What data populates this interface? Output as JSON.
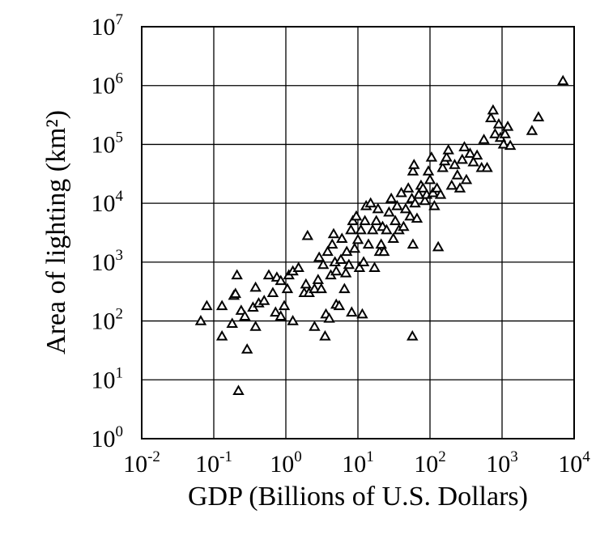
{
  "chart_data": {
    "type": "scatter",
    "title": "",
    "xlabel": "GDP (Billions of U.S. Dollars)",
    "ylabel": "Area of lighting (km²)",
    "xscale": "log",
    "yscale": "log",
    "xlim": [
      0.01,
      10000
    ],
    "ylim": [
      1,
      10000000
    ],
    "grid": true,
    "legend": "none",
    "marker": "open-triangle",
    "marker_color": "#000000",
    "x_ticks": [
      {
        "base": "10",
        "exp": "-2"
      },
      {
        "base": "10",
        "exp": "-1"
      },
      {
        "base": "10",
        "exp": "0"
      },
      {
        "base": "10",
        "exp": "1"
      },
      {
        "base": "10",
        "exp": "2"
      },
      {
        "base": "10",
        "exp": "3"
      },
      {
        "base": "10",
        "exp": "4"
      }
    ],
    "y_ticks": [
      {
        "base": "10",
        "exp": "0"
      },
      {
        "base": "10",
        "exp": "1"
      },
      {
        "base": "10",
        "exp": "2"
      },
      {
        "base": "10",
        "exp": "3"
      },
      {
        "base": "10",
        "exp": "4"
      },
      {
        "base": "10",
        "exp": "5"
      },
      {
        "base": "10",
        "exp": "6"
      },
      {
        "base": "10",
        "exp": "7"
      }
    ],
    "points": [
      [
        0.066,
        100
      ],
      [
        0.08,
        180
      ],
      [
        0.13,
        55
      ],
      [
        0.13,
        180
      ],
      [
        0.18,
        90
      ],
      [
        0.19,
        270
      ],
      [
        0.2,
        290
      ],
      [
        0.21,
        600
      ],
      [
        0.22,
        6.5
      ],
      [
        0.24,
        150
      ],
      [
        0.27,
        120
      ],
      [
        0.29,
        33
      ],
      [
        0.35,
        170
      ],
      [
        0.38,
        80
      ],
      [
        0.38,
        370
      ],
      [
        0.42,
        200
      ],
      [
        0.5,
        220
      ],
      [
        0.58,
        600
      ],
      [
        0.66,
        300
      ],
      [
        0.72,
        140
      ],
      [
        0.75,
        550
      ],
      [
        0.85,
        480
      ],
      [
        0.85,
        120
      ],
      [
        0.95,
        180
      ],
      [
        1.05,
        350
      ],
      [
        1.1,
        600
      ],
      [
        1.25,
        700
      ],
      [
        1.25,
        100
      ],
      [
        1.5,
        800
      ],
      [
        1.8,
        300
      ],
      [
        1.9,
        420
      ],
      [
        2.0,
        2800
      ],
      [
        2.1,
        300
      ],
      [
        2.5,
        80
      ],
      [
        2.5,
        350
      ],
      [
        2.8,
        500
      ],
      [
        2.9,
        1200
      ],
      [
        3.1,
        350
      ],
      [
        3.3,
        900
      ],
      [
        3.5,
        55
      ],
      [
        3.6,
        130
      ],
      [
        3.8,
        1500
      ],
      [
        4.0,
        110
      ],
      [
        4.2,
        600
      ],
      [
        4.4,
        2000
      ],
      [
        4.6,
        3000
      ],
      [
        4.8,
        1000
      ],
      [
        5.0,
        700
      ],
      [
        5.0,
        190
      ],
      [
        5.5,
        180
      ],
      [
        5.8,
        1100
      ],
      [
        6.0,
        2500
      ],
      [
        6.5,
        350
      ],
      [
        6.8,
        650
      ],
      [
        7.0,
        1500
      ],
      [
        7.5,
        900
      ],
      [
        8.0,
        3500
      ],
      [
        8.2,
        140
      ],
      [
        8.5,
        5000
      ],
      [
        9.0,
        1700
      ],
      [
        9.5,
        6000
      ],
      [
        10.0,
        2400
      ],
      [
        10.5,
        800
      ],
      [
        11.0,
        3500
      ],
      [
        11.5,
        130
      ],
      [
        12.0,
        1000
      ],
      [
        12.5,
        5000
      ],
      [
        13.0,
        9000
      ],
      [
        14.0,
        2000
      ],
      [
        15.0,
        10000
      ],
      [
        16.0,
        3500
      ],
      [
        17.0,
        800
      ],
      [
        18.0,
        5000
      ],
      [
        19.0,
        8000
      ],
      [
        20.0,
        1500
      ],
      [
        21.0,
        2000
      ],
      [
        22.0,
        4000
      ],
      [
        23.0,
        1500
      ],
      [
        25.0,
        3500
      ],
      [
        27.0,
        7000
      ],
      [
        29.0,
        12000
      ],
      [
        31.0,
        2500
      ],
      [
        33.0,
        5000
      ],
      [
        35.0,
        9000
      ],
      [
        37.0,
        3500
      ],
      [
        40.0,
        15000
      ],
      [
        43.0,
        4000
      ],
      [
        46.0,
        8000
      ],
      [
        50.0,
        18000
      ],
      [
        53.0,
        6000
      ],
      [
        56.0,
        12000
      ],
      [
        57.0,
        55
      ],
      [
        58.0,
        2000
      ],
      [
        58.0,
        35000
      ],
      [
        60.0,
        45000
      ],
      [
        62.0,
        10000
      ],
      [
        66.0,
        5500
      ],
      [
        70.0,
        14000
      ],
      [
        75.0,
        20000
      ],
      [
        80.0,
        18000
      ],
      [
        85.0,
        11000
      ],
      [
        90.0,
        14000
      ],
      [
        95.0,
        35000
      ],
      [
        100.0,
        25000
      ],
      [
        105.0,
        60000
      ],
      [
        110.0,
        15000
      ],
      [
        115.0,
        9000
      ],
      [
        125.0,
        18000
      ],
      [
        130.0,
        1800
      ],
      [
        140.0,
        14000
      ],
      [
        150.0,
        40000
      ],
      [
        160.0,
        52000
      ],
      [
        170.0,
        60000
      ],
      [
        180.0,
        80000
      ],
      [
        200.0,
        20000
      ],
      [
        220.0,
        45000
      ],
      [
        240.0,
        30000
      ],
      [
        260.0,
        18000
      ],
      [
        280.0,
        55000
      ],
      [
        300.0,
        90000
      ],
      [
        320.0,
        25000
      ],
      [
        360.0,
        70000
      ],
      [
        400.0,
        50000
      ],
      [
        450.0,
        65000
      ],
      [
        520.0,
        40000
      ],
      [
        560.0,
        120000
      ],
      [
        620.0,
        40000
      ],
      [
        700.0,
        280000
      ],
      [
        750.0,
        380000
      ],
      [
        800.0,
        150000
      ],
      [
        900.0,
        220000
      ],
      [
        950.0,
        130000
      ],
      [
        1050.0,
        100000
      ],
      [
        1100.0,
        150000
      ],
      [
        1200.0,
        200000
      ],
      [
        1300.0,
        95000
      ],
      [
        2600.0,
        170000
      ],
      [
        3200.0,
        290000
      ],
      [
        7000.0,
        1200000
      ]
    ]
  }
}
